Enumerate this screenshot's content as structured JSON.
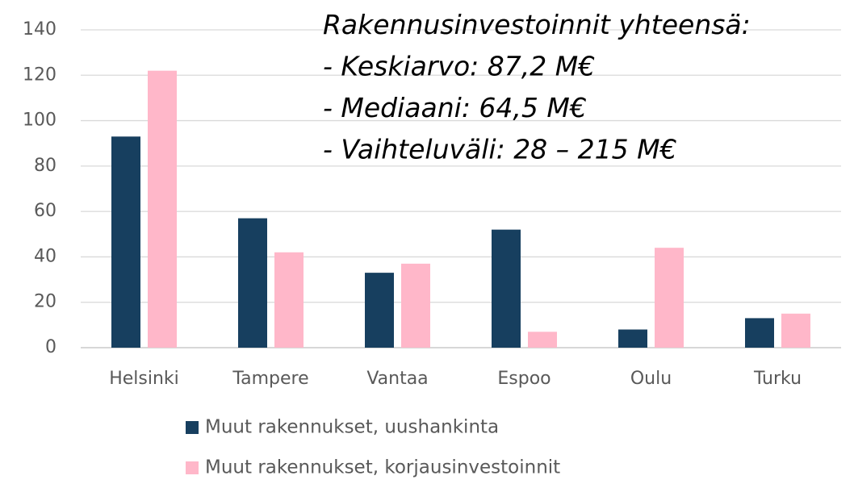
{
  "chart_data": {
    "type": "bar",
    "categories": [
      "Helsinki",
      "Tampere",
      "Vantaa",
      "Espoo",
      "Oulu",
      "Turku"
    ],
    "series": [
      {
        "name": "Muut rakennukset, uushankinta",
        "color": "#173f5f",
        "values": [
          93,
          57,
          33,
          52,
          8,
          13
        ]
      },
      {
        "name": "Muut rakennukset, korjausinvestoinnit",
        "color": "#ffb7c9",
        "values": [
          122,
          42,
          37,
          7,
          44,
          15
        ]
      }
    ],
    "annotations": [
      "Rakennusinvestoinnit yhteensä:",
      "- Keskiarvo: 87,2 M€",
      "- Mediaani: 64,5 M€",
      "- Vaihteluväli: 28 – 215 M€"
    ],
    "ylim": [
      0,
      140
    ],
    "yticks": [
      0,
      20,
      40,
      60,
      80,
      100,
      120,
      140
    ],
    "grid": true,
    "legend": "bottom"
  }
}
